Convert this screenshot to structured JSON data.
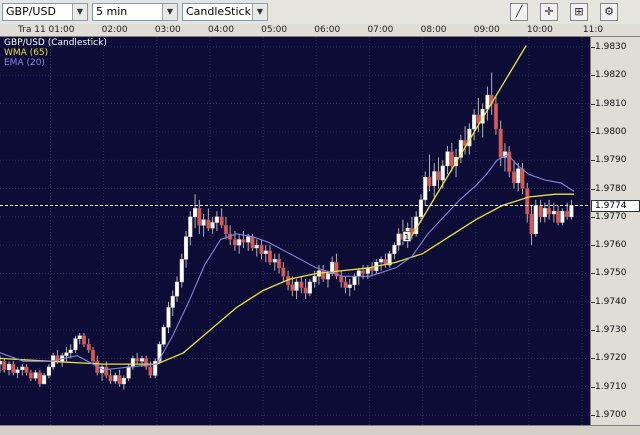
{
  "toolbar": {
    "symbol": "GBP/USD",
    "interval": "5 min",
    "chart_style": "CandleStick",
    "buttons": [
      {
        "name": "draw-line-button",
        "glyph": "╱"
      },
      {
        "name": "crosshair-button",
        "glyph": "✛"
      },
      {
        "name": "zoom-button",
        "glyph": "⊞"
      },
      {
        "name": "settings-button",
        "glyph": "⚙"
      }
    ]
  },
  "date_label": "Tra 11",
  "legend": {
    "instrument": "GBP/USD (Candlestick)",
    "wma": "WMA (65)",
    "ema": "EMA (20)"
  },
  "current_price": "1.9774",
  "trade_marker": "1",
  "colors": {
    "plot_bg": "#0c0c36",
    "grid": "#2d2d5a",
    "up": "#ffffff",
    "down": "#d45a5a",
    "wick": "#b0b0b0",
    "wma": "#e8e23a",
    "ema": "#8585e0"
  },
  "chart_data": {
    "type": "candlestick",
    "title": "GBP/USD (Candlestick)",
    "interval": "5 min",
    "x_ticks": [
      "01:00",
      "02:00",
      "03:00",
      "04:00",
      "05:00",
      "06:00",
      "07:00",
      "08:00",
      "09:00",
      "10:00",
      "11:0"
    ],
    "y_ticks": [
      "1.9830",
      "1.9820",
      "1.9810",
      "1.9800",
      "1.9790",
      "1.9780",
      "1.9770",
      "1.9760",
      "1.9750",
      "1.9740",
      "1.9730",
      "1.9720",
      "1.9710",
      "1.9700"
    ],
    "ylim": [
      1.96965,
      1.98335
    ],
    "xlim_hours": [
      0.05,
      11.15
    ],
    "grid": true,
    "current_price": 1.9774,
    "series": [
      {
        "name": "WMA (65)",
        "type": "line",
        "x": [
          0.05,
          1.0,
          2.0,
          3.0,
          3.5,
          4.0,
          4.5,
          5.0,
          5.5,
          6.0,
          6.5,
          7.0,
          7.5,
          8.0,
          8.5,
          9.0,
          9.5,
          10.0,
          10.5,
          10.85
        ],
        "y": [
          1.972,
          1.9719,
          1.9718,
          1.9718,
          1.9722,
          1.973,
          1.9738,
          1.9744,
          1.9748,
          1.975,
          1.9751,
          1.9752,
          1.9754,
          1.9757,
          1.9763,
          1.9769,
          1.9774,
          1.9777,
          1.9778,
          1.9778
        ]
      },
      {
        "name": "EMA (20)",
        "type": "line",
        "x": [
          0.05,
          0.5,
          1.0,
          1.5,
          2.0,
          2.5,
          3.0,
          3.3,
          3.6,
          3.9,
          4.2,
          4.5,
          4.8,
          5.1,
          5.5,
          6.0,
          6.5,
          7.0,
          7.5,
          7.8,
          8.1,
          8.4,
          8.7,
          9.0,
          9.2,
          9.4,
          9.6,
          9.8,
          10.0,
          10.3,
          10.6,
          10.85
        ],
        "y": [
          1.9722,
          1.9719,
          1.9719,
          1.9721,
          1.9716,
          1.9717,
          1.9718,
          1.9728,
          1.974,
          1.9753,
          1.9762,
          1.9764,
          1.9763,
          1.9761,
          1.9757,
          1.9752,
          1.9749,
          1.9749,
          1.9752,
          1.9756,
          1.9764,
          1.977,
          1.9776,
          1.9781,
          1.9785,
          1.979,
          1.9792,
          1.9788,
          1.9785,
          1.9783,
          1.9782,
          1.9779
        ]
      }
    ],
    "trendline": {
      "x": [
        7.78,
        9.95
      ],
      "y": [
        1.97627,
        1.98305
      ]
    },
    "candles_ohlc": [
      [
        0.05,
        1.9718,
        1.9721,
        1.9715,
        1.9719
      ],
      [
        0.13,
        1.9719,
        1.972,
        1.9715,
        1.9716
      ],
      [
        0.22,
        1.9716,
        1.9719,
        1.9714,
        1.9718
      ],
      [
        0.3,
        1.9718,
        1.9719,
        1.9714,
        1.9715
      ],
      [
        0.38,
        1.9715,
        1.9717,
        1.9713,
        1.9716
      ],
      [
        0.47,
        1.9716,
        1.9718,
        1.9714,
        1.9717
      ],
      [
        0.55,
        1.9717,
        1.9718,
        1.9714,
        1.9715
      ],
      [
        0.63,
        1.9715,
        1.9716,
        1.9712,
        1.9713
      ],
      [
        0.72,
        1.9713,
        1.9716,
        1.9712,
        1.9715
      ],
      [
        0.8,
        1.9715,
        1.9716,
        1.971,
        1.9711
      ],
      [
        0.88,
        1.9711,
        1.9715,
        1.9711,
        1.9714
      ],
      [
        0.97,
        1.9714,
        1.9718,
        1.9713,
        1.9717
      ],
      [
        1.05,
        1.9717,
        1.9722,
        1.9716,
        1.9721
      ],
      [
        1.13,
        1.9721,
        1.9723,
        1.9718,
        1.9719
      ],
      [
        1.22,
        1.9719,
        1.9722,
        1.9717,
        1.9721
      ],
      [
        1.3,
        1.9721,
        1.9724,
        1.9719,
        1.9722
      ],
      [
        1.38,
        1.9722,
        1.9725,
        1.972,
        1.9723
      ],
      [
        1.47,
        1.9723,
        1.9728,
        1.9722,
        1.9727
      ],
      [
        1.55,
        1.9727,
        1.9729,
        1.9725,
        1.9728
      ],
      [
        1.63,
        1.9728,
        1.9729,
        1.9724,
        1.9725
      ],
      [
        1.72,
        1.9725,
        1.9727,
        1.9722,
        1.9723
      ],
      [
        1.8,
        1.9723,
        1.9724,
        1.9718,
        1.9719
      ],
      [
        1.88,
        1.9719,
        1.9721,
        1.9714,
        1.9715
      ],
      [
        1.97,
        1.9715,
        1.9718,
        1.9712,
        1.9717
      ],
      [
        2.05,
        1.9717,
        1.9719,
        1.9713,
        1.9714
      ],
      [
        2.13,
        1.9714,
        1.9716,
        1.9711,
        1.9712
      ],
      [
        2.22,
        1.9712,
        1.9715,
        1.9711,
        1.9714
      ],
      [
        2.3,
        1.9714,
        1.9716,
        1.971,
        1.9711
      ],
      [
        2.38,
        1.9711,
        1.9714,
        1.9709,
        1.9713
      ],
      [
        2.47,
        1.9713,
        1.9718,
        1.9712,
        1.9717
      ],
      [
        2.55,
        1.9717,
        1.9721,
        1.9716,
        1.972
      ],
      [
        2.63,
        1.972,
        1.9722,
        1.9718,
        1.9719
      ],
      [
        2.72,
        1.9719,
        1.9721,
        1.9717,
        1.972
      ],
      [
        2.8,
        1.972,
        1.9721,
        1.9716,
        1.9717
      ],
      [
        2.88,
        1.9717,
        1.9719,
        1.9713,
        1.9714
      ],
      [
        2.97,
        1.9714,
        1.972,
        1.9713,
        1.9719
      ],
      [
        3.05,
        1.9719,
        1.9726,
        1.9718,
        1.9725
      ],
      [
        3.13,
        1.9725,
        1.9732,
        1.9724,
        1.9731
      ],
      [
        3.22,
        1.9731,
        1.974,
        1.9729,
        1.9738
      ],
      [
        3.3,
        1.9738,
        1.9744,
        1.9735,
        1.9742
      ],
      [
        3.38,
        1.9742,
        1.9749,
        1.974,
        1.9747
      ],
      [
        3.47,
        1.9747,
        1.9757,
        1.9745,
        1.9755
      ],
      [
        3.55,
        1.9755,
        1.9765,
        1.9752,
        1.9763
      ],
      [
        3.63,
        1.9763,
        1.9772,
        1.976,
        1.977
      ],
      [
        3.72,
        1.977,
        1.9778,
        1.9766,
        1.9773
      ],
      [
        3.8,
        1.9773,
        1.9776,
        1.9764,
        1.9767
      ],
      [
        3.88,
        1.9767,
        1.9771,
        1.9763,
        1.9769
      ],
      [
        3.97,
        1.9769,
        1.9773,
        1.9765,
        1.9766
      ],
      [
        4.05,
        1.9766,
        1.977,
        1.9764,
        1.9768
      ],
      [
        4.13,
        1.9768,
        1.9772,
        1.9765,
        1.977
      ],
      [
        4.22,
        1.977,
        1.9773,
        1.9766,
        1.9767
      ],
      [
        4.3,
        1.9767,
        1.977,
        1.9762,
        1.9764
      ],
      [
        4.38,
        1.9764,
        1.9767,
        1.976,
        1.9762
      ],
      [
        4.47,
        1.9762,
        1.9765,
        1.9758,
        1.976
      ],
      [
        4.55,
        1.976,
        1.9764,
        1.9757,
        1.9762
      ],
      [
        4.63,
        1.9762,
        1.9765,
        1.9759,
        1.9761
      ],
      [
        4.72,
        1.9761,
        1.9764,
        1.9758,
        1.9763
      ],
      [
        4.8,
        1.9763,
        1.9764,
        1.9758,
        1.9759
      ],
      [
        4.88,
        1.9759,
        1.9762,
        1.9756,
        1.976
      ],
      [
        4.97,
        1.976,
        1.9762,
        1.9755,
        1.9757
      ],
      [
        5.05,
        1.9757,
        1.976,
        1.9754,
        1.9758
      ],
      [
        5.13,
        1.9758,
        1.976,
        1.9753,
        1.9754
      ],
      [
        5.22,
        1.9754,
        1.9757,
        1.9751,
        1.9755
      ],
      [
        5.3,
        1.9755,
        1.9757,
        1.975,
        1.9752
      ],
      [
        5.38,
        1.9752,
        1.9754,
        1.9747,
        1.9749
      ],
      [
        5.47,
        1.9749,
        1.9751,
        1.9744,
        1.9746
      ],
      [
        5.55,
        1.9746,
        1.9749,
        1.9742,
        1.9744
      ],
      [
        5.63,
        1.9744,
        1.9748,
        1.9741,
        1.9747
      ],
      [
        5.72,
        1.9747,
        1.9749,
        1.9743,
        1.9745
      ],
      [
        5.8,
        1.9745,
        1.9748,
        1.9741,
        1.9743
      ],
      [
        5.88,
        1.9743,
        1.9748,
        1.9742,
        1.9747
      ],
      [
        5.97,
        1.9747,
        1.9751,
        1.9745,
        1.9749
      ],
      [
        6.05,
        1.9749,
        1.9753,
        1.9746,
        1.9751
      ],
      [
        6.13,
        1.9751,
        1.9753,
        1.9747,
        1.9748
      ],
      [
        6.22,
        1.9748,
        1.9751,
        1.9745,
        1.975
      ],
      [
        6.3,
        1.975,
        1.9756,
        1.9749,
        1.9754
      ],
      [
        6.38,
        1.9754,
        1.9757,
        1.9748,
        1.9749
      ],
      [
        6.47,
        1.9749,
        1.9751,
        1.9745,
        1.9747
      ],
      [
        6.55,
        1.9747,
        1.9749,
        1.9743,
        1.9745
      ],
      [
        6.63,
        1.9745,
        1.9748,
        1.9742,
        1.9746
      ],
      [
        6.72,
        1.9746,
        1.975,
        1.9744,
        1.9749
      ],
      [
        6.8,
        1.9749,
        1.9752,
        1.9746,
        1.9751
      ],
      [
        6.88,
        1.9751,
        1.9753,
        1.9748,
        1.975
      ],
      [
        6.97,
        1.975,
        1.9753,
        1.9748,
        1.9752
      ],
      [
        7.05,
        1.9752,
        1.9754,
        1.9749,
        1.9751
      ],
      [
        7.13,
        1.9751,
        1.9755,
        1.975,
        1.9754
      ],
      [
        7.22,
        1.9754,
        1.9756,
        1.9751,
        1.9755
      ],
      [
        7.3,
        1.9755,
        1.9757,
        1.9752,
        1.9753
      ],
      [
        7.38,
        1.9753,
        1.9758,
        1.9752,
        1.9757
      ],
      [
        7.47,
        1.9757,
        1.9761,
        1.9755,
        1.976
      ],
      [
        7.55,
        1.976,
        1.9766,
        1.9758,
        1.9764
      ],
      [
        7.63,
        1.9764,
        1.9769,
        1.976,
        1.9762
      ],
      [
        7.72,
        1.9762,
        1.9768,
        1.9759,
        1.9766
      ],
      [
        7.8,
        1.9766,
        1.977,
        1.9762,
        1.9764
      ],
      [
        7.88,
        1.9764,
        1.9772,
        1.9763,
        1.977
      ],
      [
        7.97,
        1.977,
        1.9778,
        1.9768,
        1.9776
      ],
      [
        8.05,
        1.9776,
        1.9786,
        1.9774,
        1.9784
      ],
      [
        8.13,
        1.9784,
        1.9792,
        1.9779,
        1.9781
      ],
      [
        8.22,
        1.9781,
        1.9789,
        1.9777,
        1.9786
      ],
      [
        8.3,
        1.9786,
        1.9791,
        1.978,
        1.9783
      ],
      [
        8.38,
        1.9783,
        1.979,
        1.978,
        1.9788
      ],
      [
        8.47,
        1.9788,
        1.9795,
        1.9785,
        1.9793
      ],
      [
        8.55,
        1.9793,
        1.9796,
        1.9786,
        1.9788
      ],
      [
        8.63,
        1.9788,
        1.9794,
        1.9784,
        1.9791
      ],
      [
        8.72,
        1.9791,
        1.9799,
        1.9789,
        1.9797
      ],
      [
        8.8,
        1.9797,
        1.9802,
        1.9792,
        1.9795
      ],
      [
        8.88,
        1.9795,
        1.9803,
        1.9792,
        1.9801
      ],
      [
        8.97,
        1.9801,
        1.9808,
        1.9797,
        1.9806
      ],
      [
        9.05,
        1.9806,
        1.9812,
        1.98,
        1.9803
      ],
      [
        9.13,
        1.9803,
        1.981,
        1.9798,
        1.9808
      ],
      [
        9.22,
        1.9808,
        1.9816,
        1.9804,
        1.9813
      ],
      [
        9.3,
        1.9813,
        1.9821,
        1.9806,
        1.981
      ],
      [
        9.38,
        1.981,
        1.9813,
        1.9799,
        1.9801
      ],
      [
        9.47,
        1.9801,
        1.9804,
        1.9788,
        1.9791
      ],
      [
        9.55,
        1.9791,
        1.9796,
        1.9786,
        1.9793
      ],
      [
        9.63,
        1.9793,
        1.9795,
        1.9784,
        1.9786
      ],
      [
        9.72,
        1.9786,
        1.979,
        1.978,
        1.9782
      ],
      [
        9.8,
        1.9782,
        1.9789,
        1.9779,
        1.9787
      ],
      [
        9.88,
        1.9787,
        1.9789,
        1.9778,
        1.978
      ],
      [
        9.97,
        1.978,
        1.9782,
        1.9768,
        1.9771
      ],
      [
        10.05,
        1.9771,
        1.9774,
        1.976,
        1.9764
      ],
      [
        10.13,
        1.9764,
        1.9776,
        1.9763,
        1.9774
      ],
      [
        10.22,
        1.9774,
        1.9776,
        1.9768,
        1.977
      ],
      [
        10.3,
        1.977,
        1.9775,
        1.9768,
        1.9773
      ],
      [
        10.38,
        1.9773,
        1.9776,
        1.9769,
        1.9771
      ],
      [
        10.47,
        1.9771,
        1.9775,
        1.9768,
        1.9772
      ],
      [
        10.55,
        1.9772,
        1.9774,
        1.9767,
        1.9768
      ],
      [
        10.63,
        1.9768,
        1.9773,
        1.9767,
        1.9772
      ],
      [
        10.72,
        1.9772,
        1.9775,
        1.9769,
        1.977
      ],
      [
        10.8,
        1.977,
        1.9776,
        1.9769,
        1.9774
      ]
    ]
  }
}
